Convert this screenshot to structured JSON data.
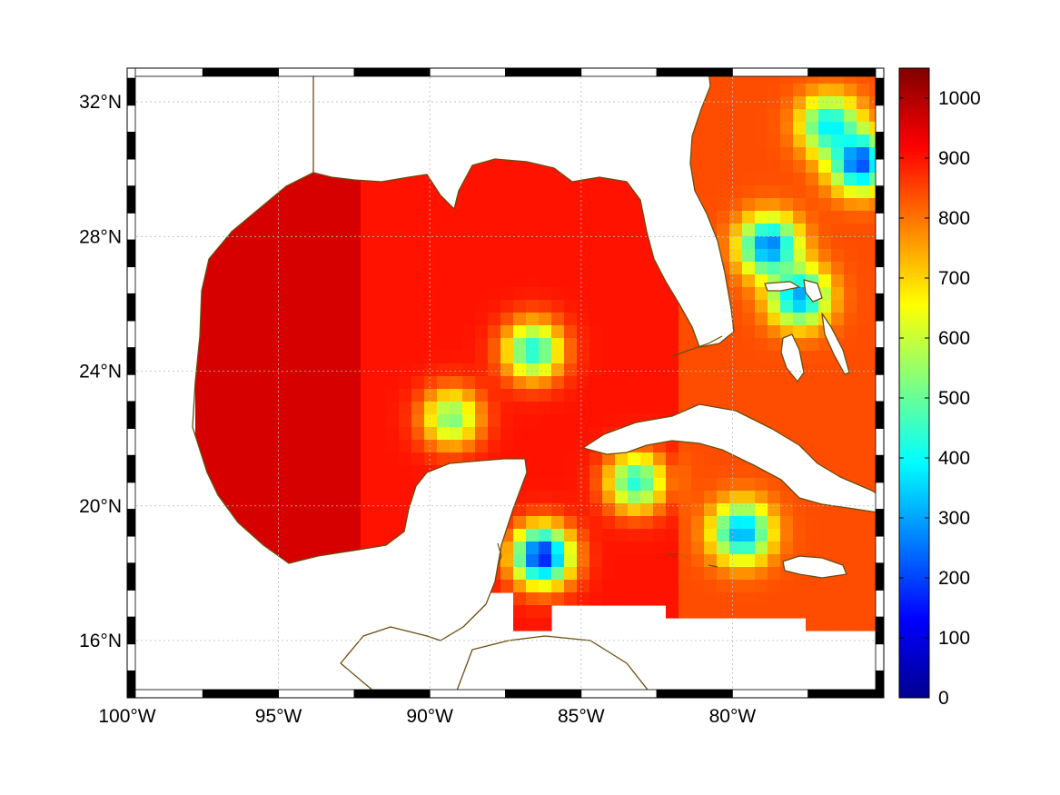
{
  "map": {
    "lon_range": [
      -100,
      -75
    ],
    "lat_range": [
      14.3,
      33
    ],
    "x_ticks": [
      {
        "lon": -100,
        "label": "100°W"
      },
      {
        "lon": -95,
        "label": "95°W"
      },
      {
        "lon": -90,
        "label": "90°W"
      },
      {
        "lon": -85,
        "label": "85°W"
      },
      {
        "lon": -80,
        "label": "80°W"
      }
    ],
    "y_ticks": [
      {
        "lat": 16,
        "label": "16°N"
      },
      {
        "lat": 20,
        "label": "20°N"
      },
      {
        "lat": 24,
        "label": "24°N"
      },
      {
        "lat": 28,
        "label": "28°N"
      },
      {
        "lat": 32,
        "label": "32°N"
      }
    ],
    "gridlines": true,
    "coastline_color": "#6b4c0c",
    "frame_style": "alternating black-white border"
  },
  "colorbar": {
    "min": 0,
    "max": 1050,
    "colormap": "jet",
    "ticks": [
      {
        "value": 0,
        "label": "0"
      },
      {
        "value": 100,
        "label": "100"
      },
      {
        "value": 200,
        "label": "200"
      },
      {
        "value": 300,
        "label": "300"
      },
      {
        "value": 400,
        "label": "400"
      },
      {
        "value": 500,
        "label": "500"
      },
      {
        "value": 600,
        "label": "600"
      },
      {
        "value": 700,
        "label": "700"
      },
      {
        "value": 800,
        "label": "800"
      },
      {
        "value": 900,
        "label": "900"
      },
      {
        "value": 1000,
        "label": "1000"
      }
    ]
  },
  "field": {
    "base_value_west_gulf": 960,
    "base_value_east_gulf": 900,
    "base_value_atlantic": 840,
    "low_value_regions": [
      {
        "name": "central-gulf-plume",
        "lon": -86.8,
        "lat": 24.8,
        "value": 420
      },
      {
        "name": "loop-current-arc",
        "lon": -89.5,
        "lat": 22.8,
        "value": 520
      },
      {
        "name": "caribbean-yucatan-basin",
        "lon": -86.5,
        "lat": 18.7,
        "value": 150
      },
      {
        "name": "west-cuba-patch",
        "lon": -83.4,
        "lat": 20.9,
        "value": 430
      },
      {
        "name": "jamaica-north-patch",
        "lon": -79.9,
        "lat": 19.4,
        "value": 300
      },
      {
        "name": "bahamas-north",
        "lon": -79.0,
        "lat": 27.9,
        "value": 250
      },
      {
        "name": "atlantic-32n",
        "lon": -77.0,
        "lat": 31.5,
        "value": 380
      },
      {
        "name": "atlantic-30n",
        "lon": -76.0,
        "lat": 30.4,
        "value": 200
      },
      {
        "name": "great-abaco",
        "lon": -78.0,
        "lat": 26.4,
        "value": 300
      }
    ]
  }
}
